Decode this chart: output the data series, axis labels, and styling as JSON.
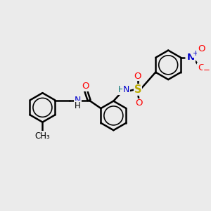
{
  "bg_color": "#ebebeb",
  "bond_color": "#000000",
  "bond_width": 1.8,
  "atom_colors": {
    "O": "#ff0000",
    "N": "#0000cc",
    "S": "#bbaa00",
    "H": "#007070",
    "C": "#000000"
  },
  "font_size": 8.5,
  "fig_size": [
    3.0,
    3.0
  ],
  "dpi": 100,
  "xlim": [
    0,
    10
  ],
  "ylim": [
    0,
    10
  ]
}
